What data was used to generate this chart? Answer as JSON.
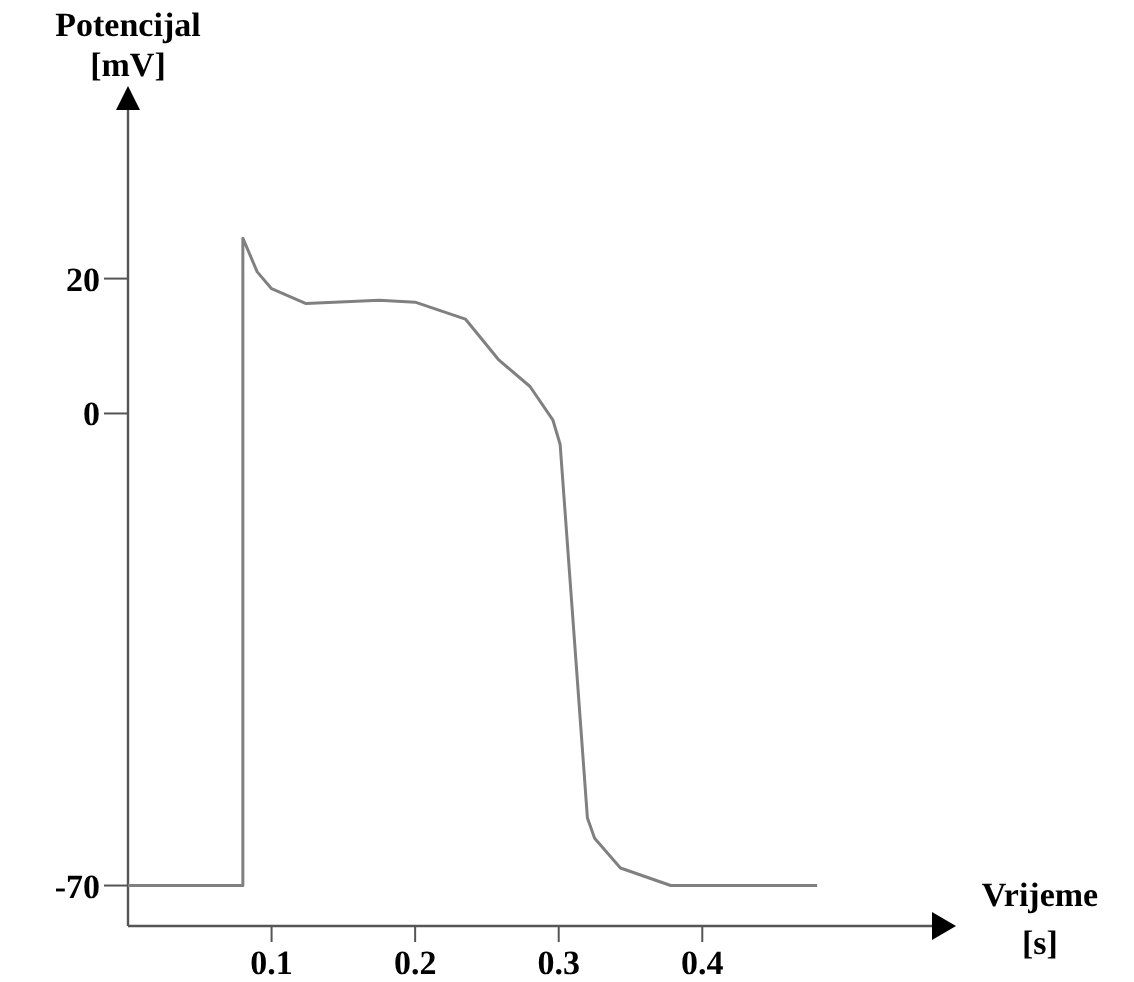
{
  "chart_data": {
    "type": "line",
    "ylabel": "Potencijal\n[mV]",
    "xlabel": "Vrijeme\n[s]",
    "x": [
      0,
      0.08,
      0.08,
      0.09,
      0.1,
      0.124,
      0.175,
      0.2,
      0.235,
      0.258,
      0.28,
      0.296,
      0.301,
      0.32,
      0.325,
      0.343,
      0.378,
      0.48
    ],
    "series": [
      {
        "color": "#808080",
        "values": [
          -70,
          -70,
          26,
          21,
          18.5,
          16.3,
          16.8,
          16.5,
          14,
          8,
          4,
          -1,
          -4.6,
          -60,
          -63,
          -67.4,
          -70,
          -70
        ]
      }
    ],
    "xlim": [
      0,
      0.56
    ],
    "xticks": [
      0.1,
      0.2,
      0.3,
      0.4
    ],
    "ylim": [
      -76,
      45
    ],
    "yticks": [
      -70,
      0,
      20
    ],
    "grid": false,
    "marker": "none",
    "line_style": "solid"
  }
}
